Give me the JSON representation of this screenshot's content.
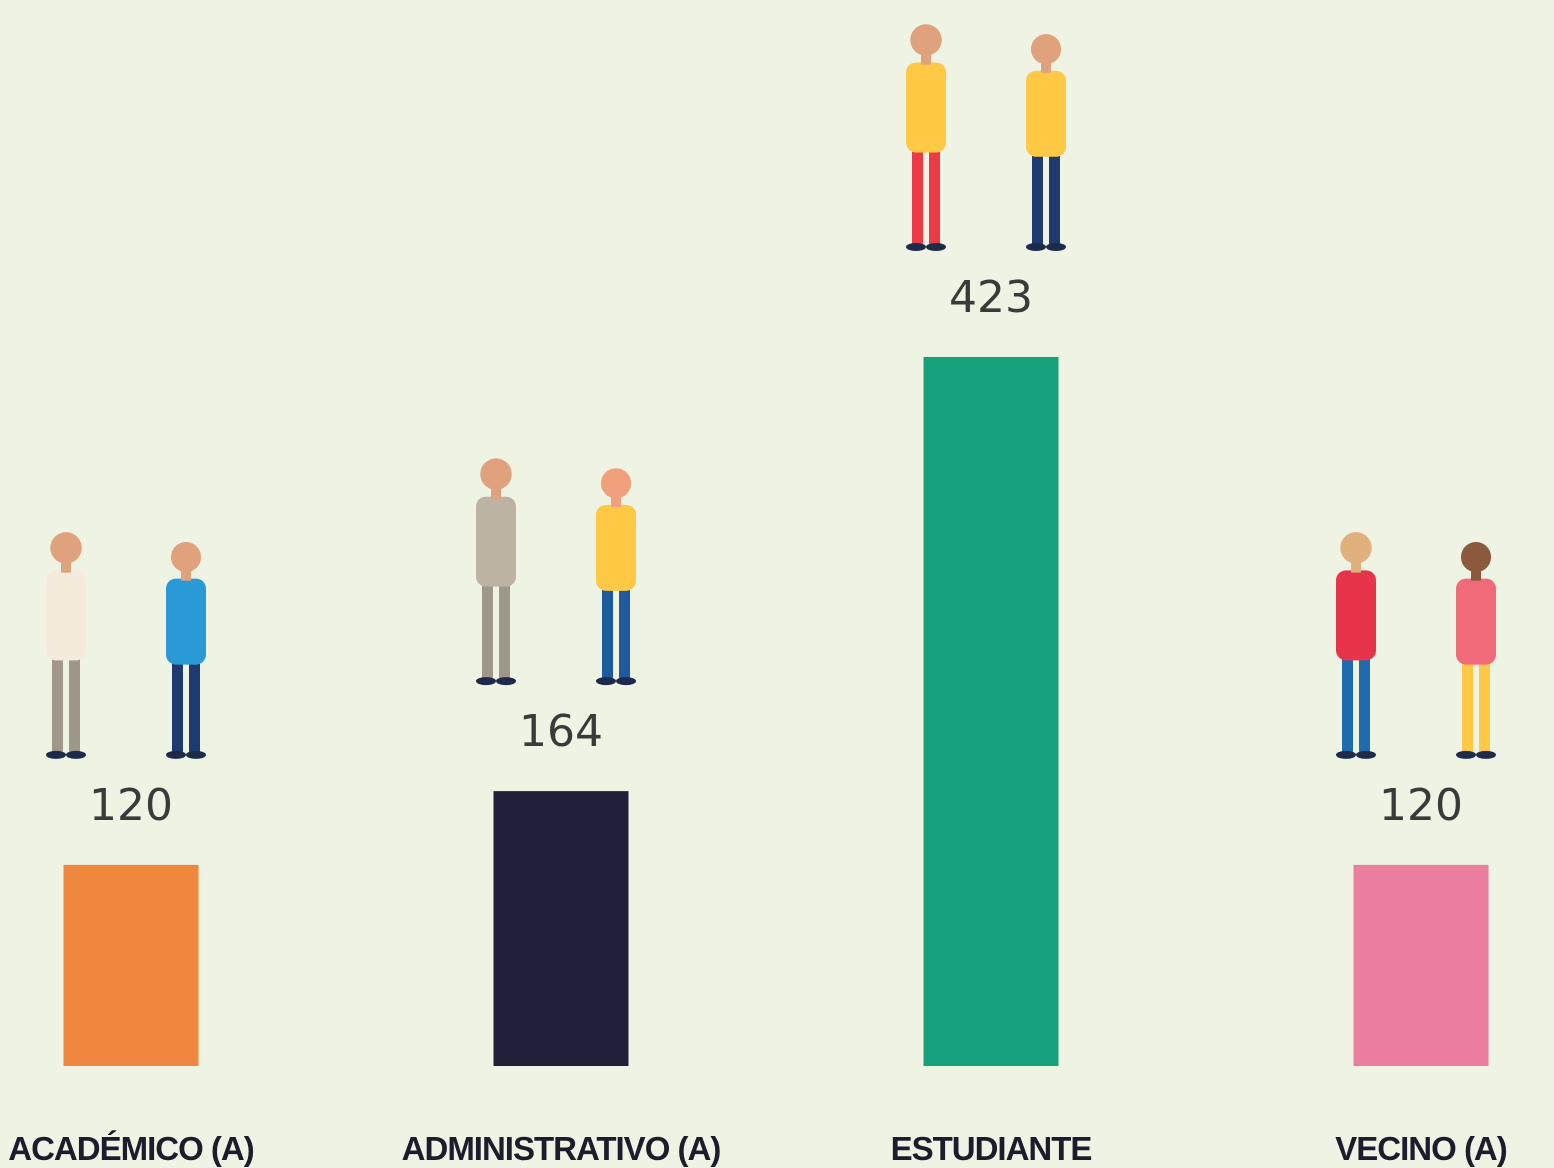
{
  "chart_data": {
    "type": "bar",
    "categories": [
      "ACADÉMICO (A)",
      "ADMINISTRATIVO (A)",
      "ESTUDIANTE",
      "VECINO (A)"
    ],
    "values": [
      120,
      164,
      423,
      120
    ],
    "colors": [
      "#F0873F",
      "#21203A",
      "#16A07B",
      "#EC7EA0"
    ]
  }
}
